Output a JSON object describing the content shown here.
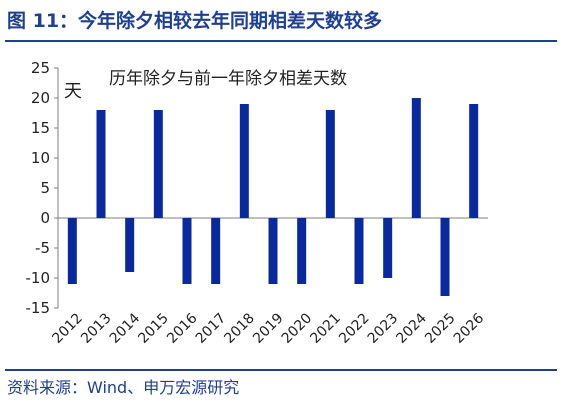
{
  "figure": {
    "title": "图 11：今年除夕相较去年同期相差天数较多",
    "source": "资料来源：Wind、申万宏源研究"
  },
  "chart_data": {
    "type": "bar",
    "title": "历年除夕与前一年除夕相差天数",
    "ylabel": "天",
    "xlabel": "",
    "categories": [
      "2012",
      "2013",
      "2014",
      "2015",
      "2016",
      "2017",
      "2018",
      "2019",
      "2020",
      "2021",
      "2022",
      "2023",
      "2024",
      "2025",
      "2026"
    ],
    "values": [
      -11,
      18,
      -9,
      18,
      -11,
      -11,
      19,
      -11,
      -11,
      18,
      -11,
      -10,
      20,
      -13,
      19
    ],
    "ylim": [
      -15,
      25
    ],
    "yticks": [
      -15,
      -10,
      -5,
      0,
      5,
      10,
      15,
      20,
      25
    ],
    "grid": false,
    "legend": "none",
    "bar_color": "#0a2a9c"
  }
}
